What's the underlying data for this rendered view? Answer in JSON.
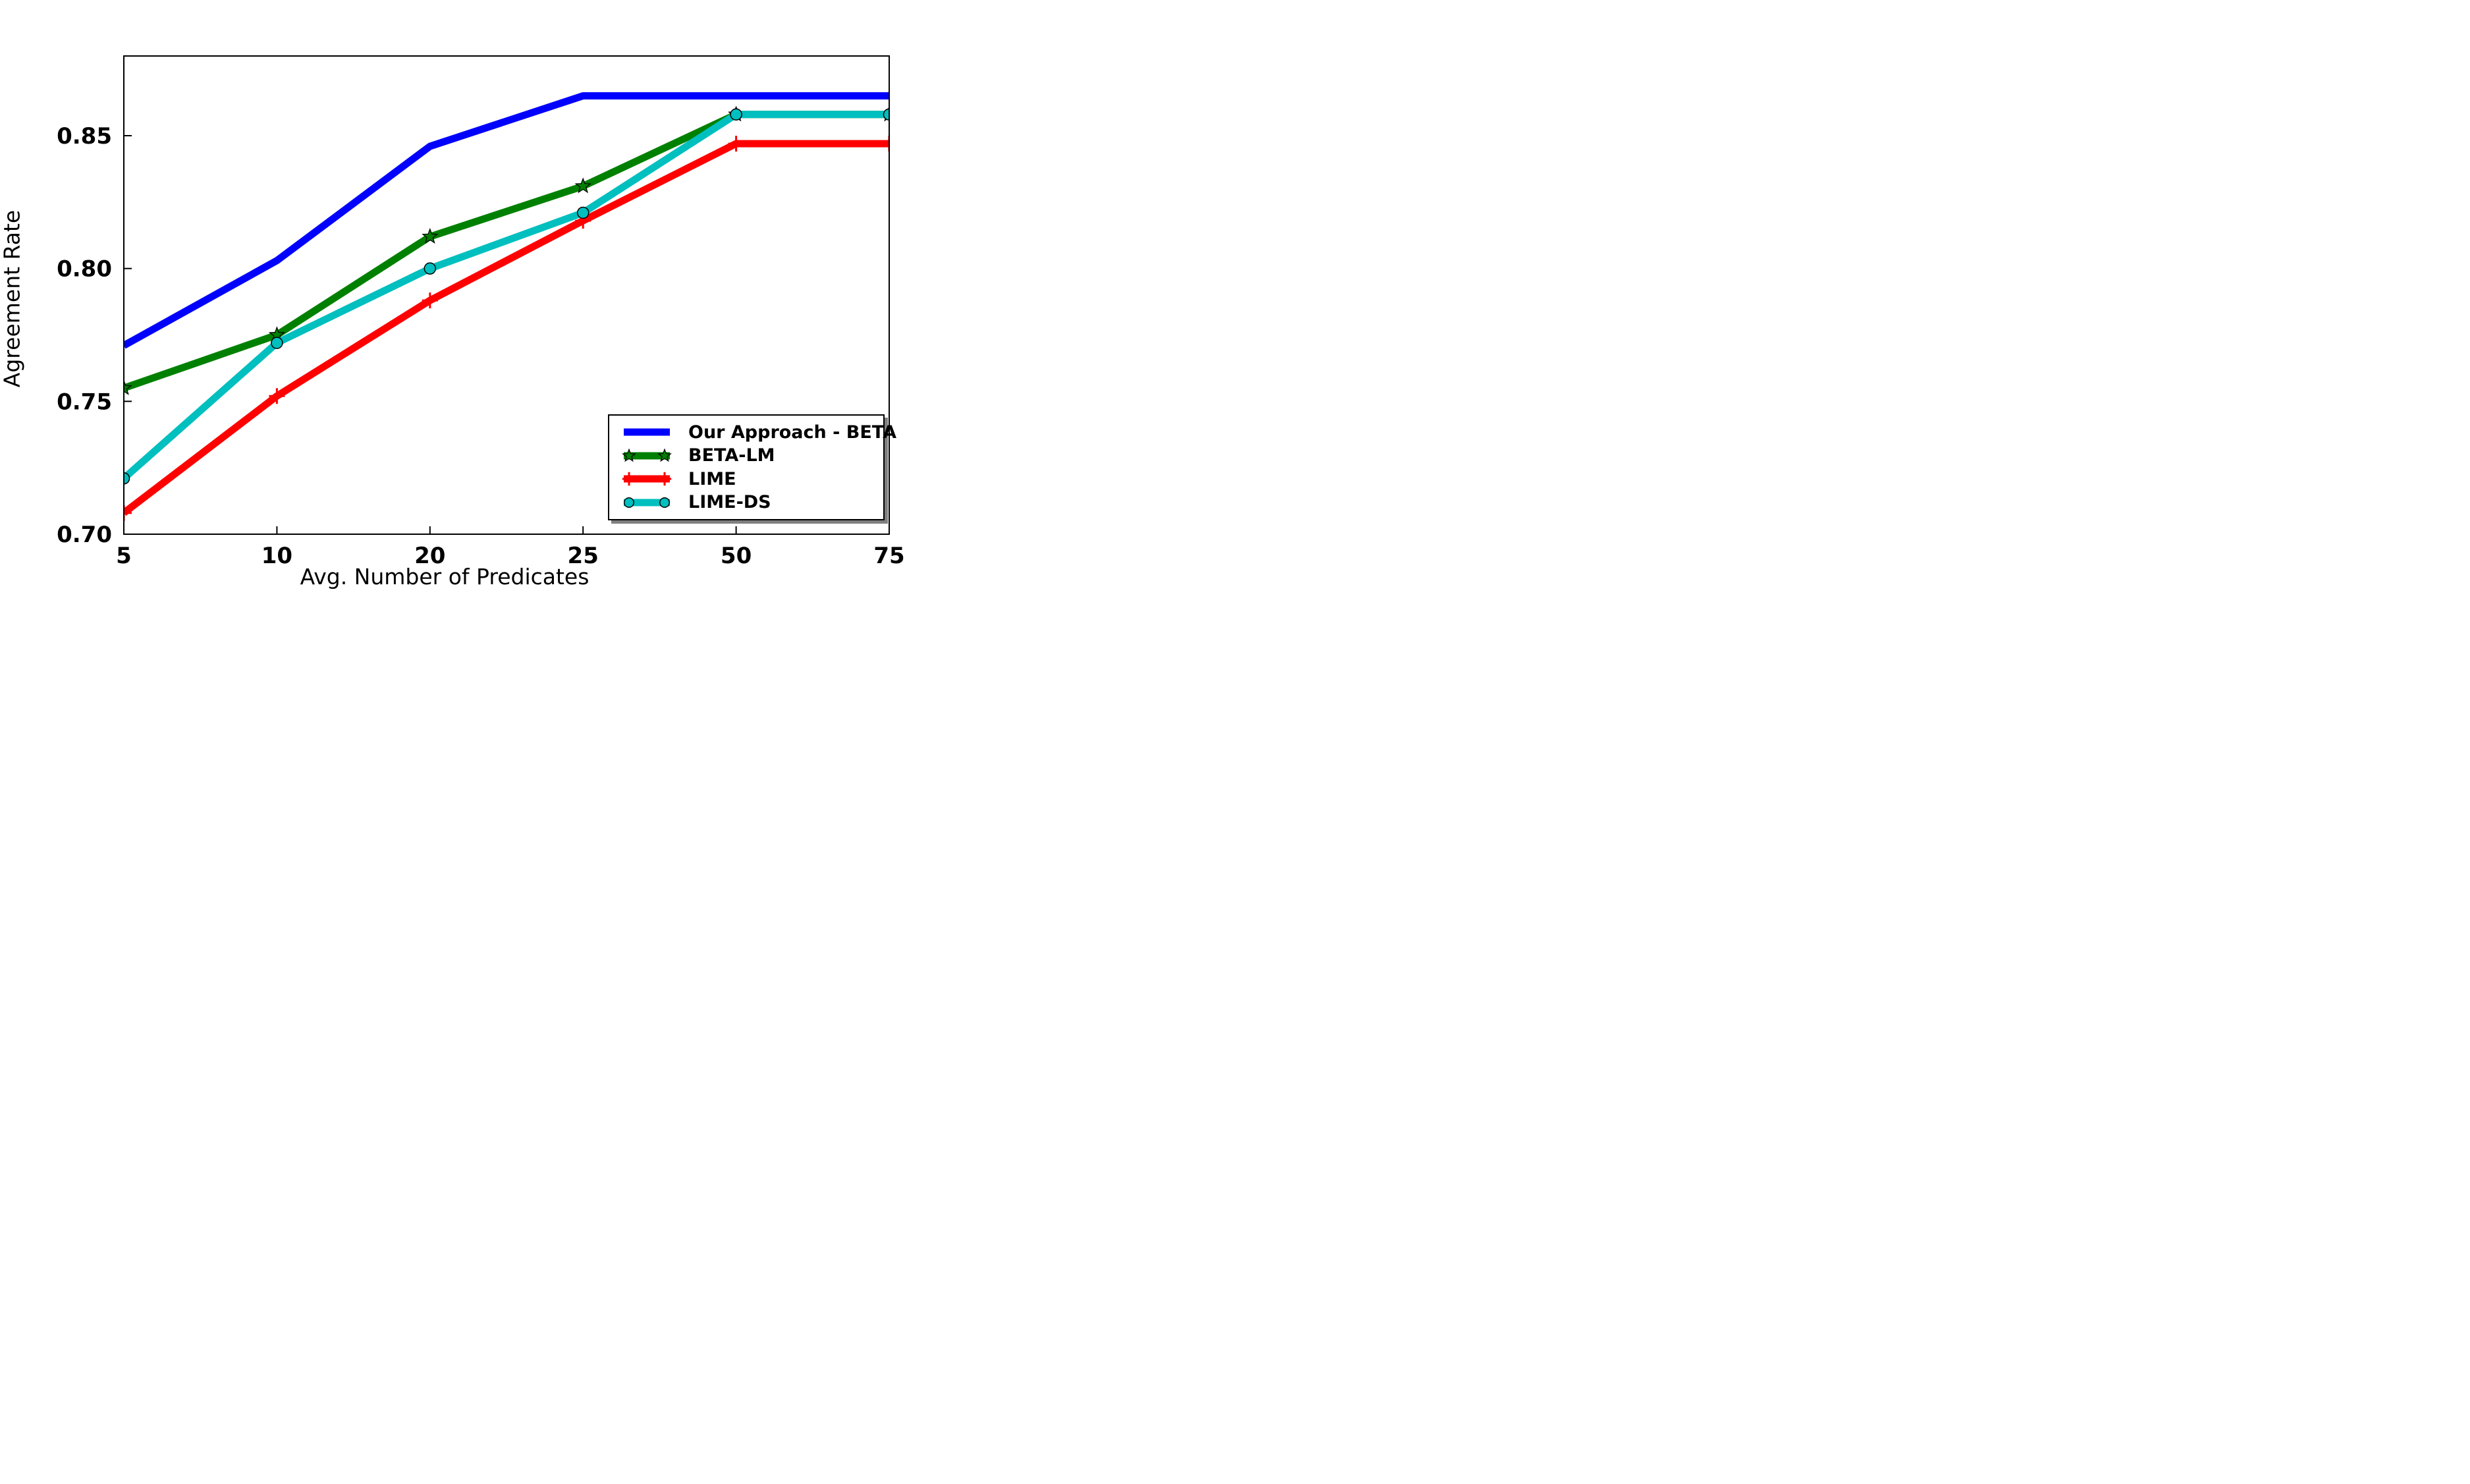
{
  "figure": {
    "background": "#ffffff",
    "spine_color": "#000000"
  },
  "chart_data": {
    "type": "line",
    "title": "",
    "xlabel": "Avg. Number of Predicates",
    "ylabel": "Agreement Rate",
    "categories": [
      "5",
      "10",
      "20",
      "25",
      "50",
      "75"
    ],
    "x_values": [
      5,
      10,
      20,
      25,
      50,
      75
    ],
    "x_spacing": "categorical-even",
    "ylim": [
      0.7,
      0.88
    ],
    "yticks": [
      0.7,
      0.75,
      0.8,
      0.85
    ],
    "ytick_labels": [
      "0.70",
      "0.75",
      "0.80",
      "0.85"
    ],
    "grid": false,
    "legend_position": "lower right",
    "legend_shadow": true,
    "series": [
      {
        "name": "Our Approach - BETA",
        "color": "#0000ff",
        "marker": "none",
        "values": [
          0.771,
          0.803,
          0.846,
          0.865,
          0.865,
          0.865
        ]
      },
      {
        "name": "BETA-LM",
        "color": "#008000",
        "marker": "star",
        "marker_edge": "#000000",
        "values": [
          0.755,
          0.775,
          0.812,
          0.831,
          0.858,
          0.858
        ]
      },
      {
        "name": "LIME",
        "color": "#ff0000",
        "marker": "plus",
        "values": [
          0.708,
          0.752,
          0.788,
          0.818,
          0.847,
          0.847
        ]
      },
      {
        "name": "LIME-DS",
        "color": "#00bfbf",
        "marker": "circle",
        "marker_edge": "#000000",
        "values": [
          0.721,
          0.772,
          0.8,
          0.821,
          0.858,
          0.858
        ]
      }
    ]
  },
  "legend": {
    "entries": [
      {
        "label": "Our Approach - BETA"
      },
      {
        "label": "BETA-LM"
      },
      {
        "label": "LIME"
      },
      {
        "label": "LIME-DS"
      }
    ]
  }
}
